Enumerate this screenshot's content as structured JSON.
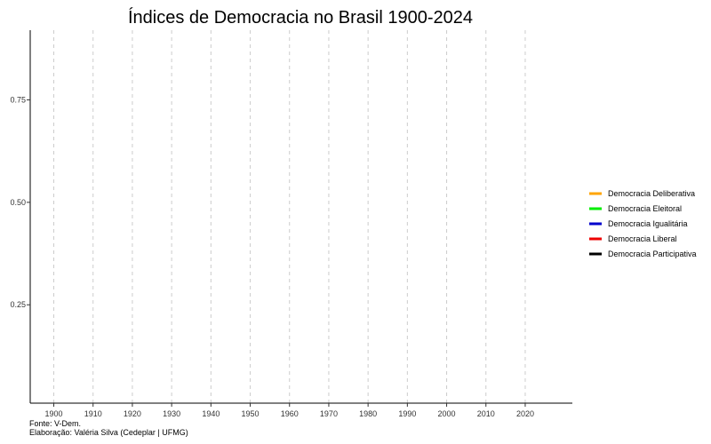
{
  "chart_data": {
    "type": "line",
    "title": "Índices de Democracia no Brasil 1900-2024",
    "xlabel": "",
    "ylabel": "",
    "xlim": [
      1894,
      2032
    ],
    "ylim": [
      0.01,
      0.92
    ],
    "x_ticks": [
      1900,
      1910,
      1920,
      1930,
      1940,
      1950,
      1960,
      1970,
      1980,
      1990,
      2000,
      2010,
      2020
    ],
    "y_ticks": [
      0.25,
      0.5,
      0.75
    ],
    "y_tick_labels": [
      "0.25",
      "0.50",
      "0.75"
    ],
    "grid": "vertical-dashed",
    "legend_position": "right",
    "series": [
      {
        "name": "Democracia Deliberativa",
        "color": "#FFA500",
        "x": [],
        "values": []
      },
      {
        "name": "Democracia Eleitoral",
        "color": "#00EE00",
        "x": [],
        "values": []
      },
      {
        "name": "Democracia Igualitária",
        "color": "#0000CD",
        "x": [],
        "values": []
      },
      {
        "name": "Democracia Liberal",
        "color": "#EE0000",
        "x": [],
        "values": []
      },
      {
        "name": "Democracia Participativa",
        "color": "#000000",
        "x": [],
        "values": []
      }
    ],
    "caption": [
      "Fonte: V-Dem.",
      "Elaboração: Valéria Silva (Cedeplar | UFMG)"
    ]
  }
}
